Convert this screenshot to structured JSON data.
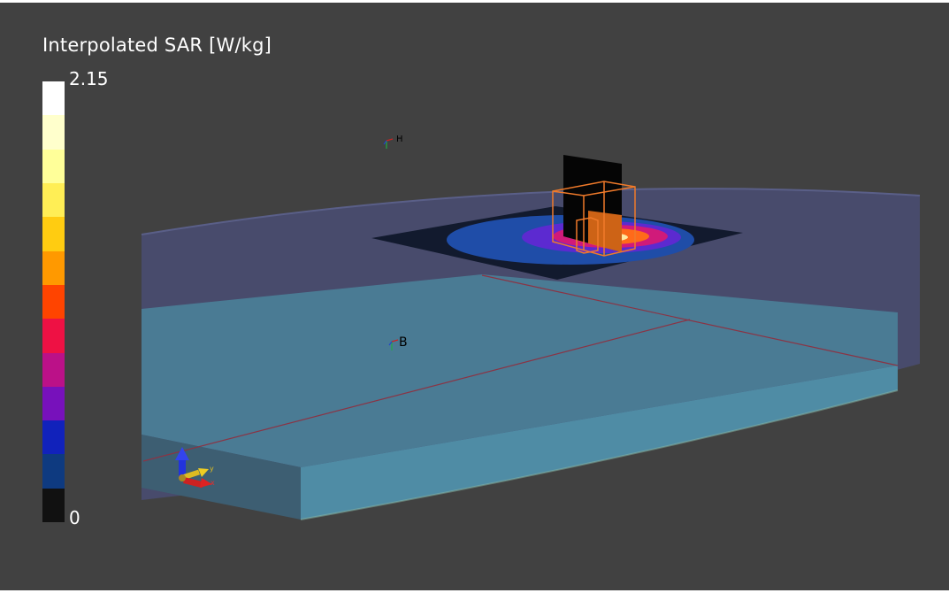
{
  "legend": {
    "title": "Interpolated SAR [W/kg]",
    "max_label": "2.15",
    "min_label": "0",
    "colors": [
      "#ffffff",
      "#ffffcc",
      "#ffff99",
      "#ffee55",
      "#ffcc11",
      "#ff9900",
      "#ff4400",
      "#ee1144",
      "#bb1188",
      "#7711bb",
      "#1122bb",
      "#0e3a80",
      "#111111"
    ]
  },
  "viewport": {
    "background_color": "#414141",
    "markers": [
      {
        "name": "marker-h",
        "label": "H"
      },
      {
        "name": "marker-b",
        "label": "B"
      }
    ],
    "axes_triad": {
      "labels": [
        "y",
        "x"
      ],
      "colors": {
        "z": "#2233dd",
        "y": "#ddbb22",
        "x": "#dd2222"
      }
    }
  }
}
